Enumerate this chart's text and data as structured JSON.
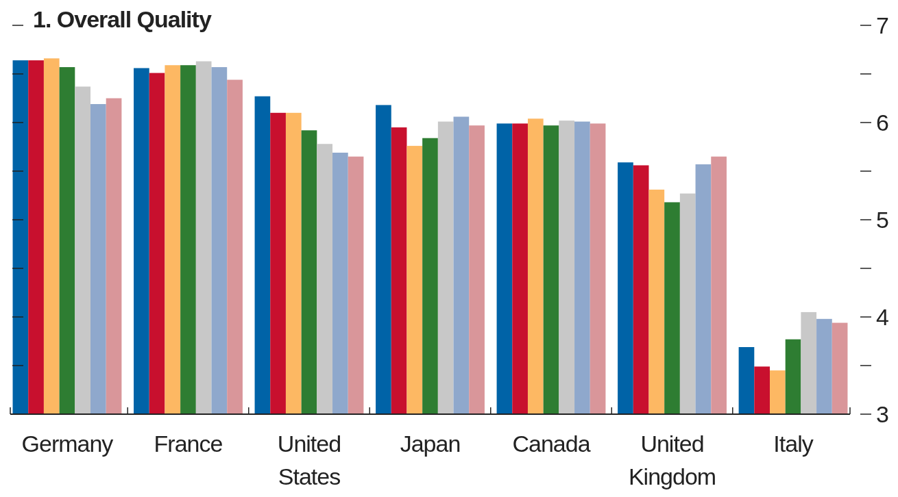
{
  "chart_data": {
    "type": "bar",
    "title": "1. Overall Quality",
    "categories": [
      "Germany",
      "France",
      "United States",
      "Japan",
      "Canada",
      "United Kingdom",
      "Italy"
    ],
    "series": [
      {
        "color": "#0063a7",
        "values": [
          6.64,
          6.56,
          6.27,
          6.18,
          5.99,
          5.59,
          3.69
        ]
      },
      {
        "color": "#c8102e",
        "values": [
          6.64,
          6.51,
          6.1,
          5.95,
          5.99,
          5.56,
          3.49
        ]
      },
      {
        "color": "#fdb863",
        "values": [
          6.66,
          6.59,
          6.1,
          5.76,
          6.04,
          5.31,
          3.45
        ]
      },
      {
        "color": "#2e7d32",
        "values": [
          6.57,
          6.59,
          5.92,
          5.84,
          5.97,
          5.18,
          3.77
        ]
      },
      {
        "color": "#c8c8c8",
        "values": [
          6.37,
          6.63,
          5.78,
          6.01,
          6.02,
          5.27,
          4.05
        ]
      },
      {
        "color": "#8fa8cc",
        "values": [
          6.19,
          6.57,
          5.69,
          6.06,
          6.01,
          5.57,
          3.98
        ]
      },
      {
        "color": "#d9969a",
        "values": [
          6.25,
          6.44,
          5.65,
          5.97,
          5.99,
          5.65,
          3.94
        ]
      }
    ],
    "ylim": [
      3,
      7
    ],
    "yticks": [
      3,
      {
        "value": 3.5,
        "label": null
      },
      4,
      {
        "value": 4.5,
        "label": null
      },
      5,
      {
        "value": 5.5,
        "label": null
      },
      6,
      {
        "value": 6.5,
        "label": null
      },
      7
    ],
    "grid": false
  }
}
